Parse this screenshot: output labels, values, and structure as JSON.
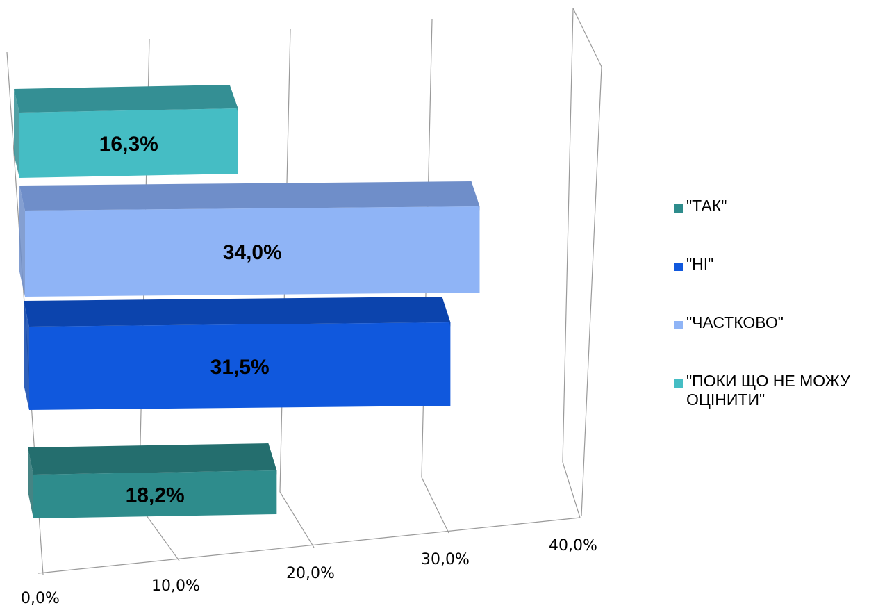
{
  "chart_data": {
    "type": "bar",
    "orientation": "horizontal",
    "three_d": true,
    "categories": [
      "\"ТАК\"",
      "\"НІ\"",
      "\"ЧАСТКОВО\"",
      "\"ПОКИ ЩО НЕ МОЖУ ОЦІНИТИ\""
    ],
    "values": [
      18.2,
      31.5,
      34.0,
      16.3
    ],
    "value_labels": [
      "18,2%",
      "31,5%",
      "34,0%",
      "16,3%"
    ],
    "colors": [
      "#2e8c8c",
      "#1058dd",
      "#8fb4f6",
      "#45bdc4"
    ],
    "top_colors": [
      "#246e6e",
      "#0c44ad",
      "#6f8ec9",
      "#348f94"
    ],
    "x_ticks": [
      "0,0%",
      "10,0%",
      "20,0%",
      "30,0%",
      "40,0%"
    ],
    "xlim": [
      0,
      40
    ],
    "grid": true,
    "legend_position": "right",
    "legend": [
      {
        "label": "\"ТАК\"",
        "color": "#2e8c8c"
      },
      {
        "label": "\"НІ\"",
        "color": "#1058dd"
      },
      {
        "label": "\"ЧАСТКОВО\"",
        "color": "#8fb4f6"
      },
      {
        "label": "\"ПОКИ ЩО НЕ МОЖУ\nОЦІНИТИ\"",
        "color": "#45bdc4"
      }
    ]
  }
}
